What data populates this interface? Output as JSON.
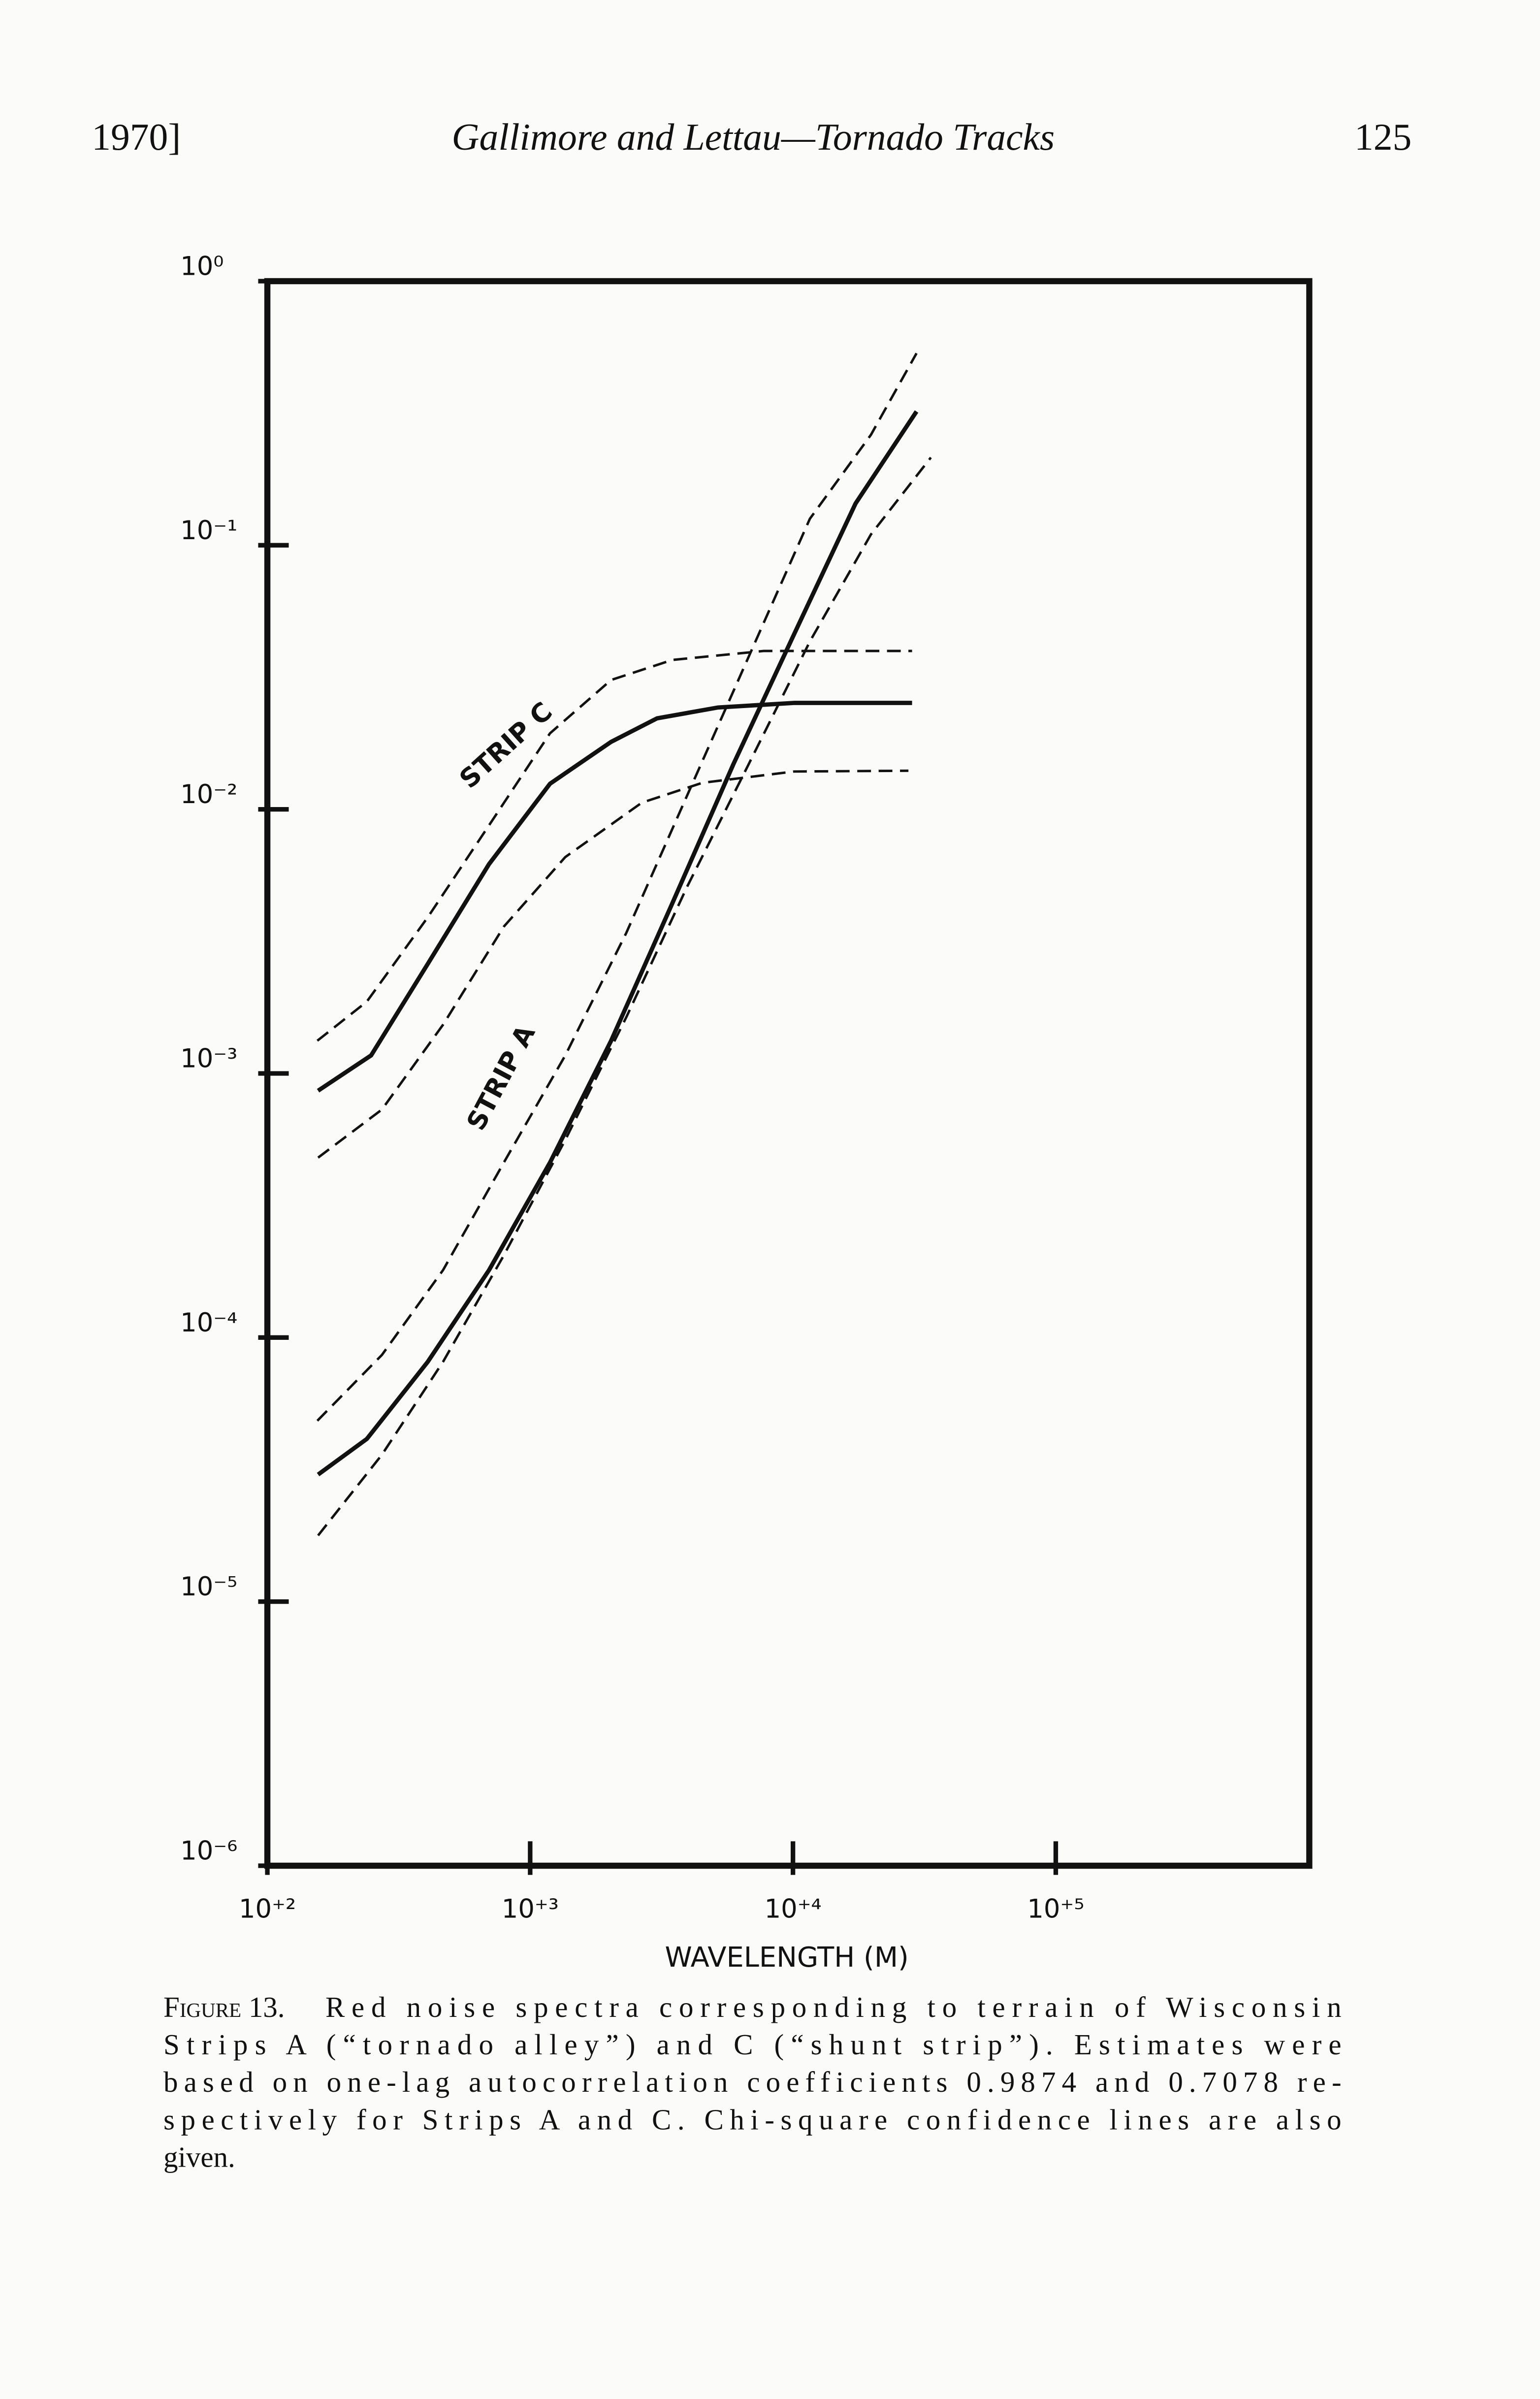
{
  "header": {
    "left": "1970]",
    "center": "Gallimore and Lettau—Tornado Tracks",
    "right": "125"
  },
  "chart_data": {
    "type": "line",
    "xscale": "log",
    "yscale": "log",
    "xlabel": "WAVELENGTH (M)",
    "xlim": [
      100,
      922000
    ],
    "ylim": [
      1e-06,
      1
    ],
    "xticks": [
      {
        "value": 100,
        "label": "10⁺²"
      },
      {
        "value": 1000,
        "label": "10⁺³"
      },
      {
        "value": 10000,
        "label": "10⁺⁴"
      },
      {
        "value": 100000,
        "label": "10⁺⁵"
      }
    ],
    "yticks": [
      {
        "value": 1,
        "label": "10⁰"
      },
      {
        "value": 0.1,
        "label": "10⁻¹"
      },
      {
        "value": 0.01,
        "label": "10⁻²"
      },
      {
        "value": 0.001,
        "label": "10⁻³"
      },
      {
        "value": 0.0001,
        "label": "10⁻⁴"
      },
      {
        "value": 1e-05,
        "label": "10⁻⁵"
      },
      {
        "value": 1e-06,
        "label": "10⁻⁶"
      }
    ],
    "series": [
      {
        "name": "STRIP C",
        "color": "#111111",
        "style": "solid",
        "x": [
          156,
          248,
          408,
          697,
          1190,
          2032,
          3039,
          5188,
          10140,
          28400
        ],
        "values": [
          0.00086,
          0.00117,
          0.0026,
          0.0062,
          0.0125,
          0.018,
          0.0221,
          0.0243,
          0.0253,
          0.0253
        ]
      },
      {
        "color": "#111111",
        "style": "dashed",
        "x": [
          155,
          239,
          408,
          697,
          1190,
          2032,
          3470,
          7750,
          28400
        ],
        "values": [
          0.00133,
          0.00187,
          0.0039,
          0.0087,
          0.0194,
          0.0309,
          0.0368,
          0.0398,
          0.0398
        ]
      },
      {
        "color": "#111111",
        "style": "dashed",
        "x": [
          156,
          273,
          466,
          794,
          1360,
          2660,
          4520,
          10100,
          27500
        ],
        "values": [
          0.00048,
          0.00073,
          0.00153,
          0.0036,
          0.0066,
          0.0106,
          0.0126,
          0.0139,
          0.014
        ]
      },
      {
        "name": "STRIP A",
        "color": "#111111",
        "style": "solid",
        "x": [
          156,
          239,
          408,
          697,
          1190,
          2032,
          3470,
          5930,
          10100,
          17300,
          29500
        ],
        "values": [
          3.03e-05,
          4.13e-05,
          8.1e-05,
          0.00018,
          0.00046,
          0.00133,
          0.0044,
          0.0148,
          0.0461,
          0.144,
          0.321
        ]
      },
      {
        "color": "#111111",
        "style": "dashed",
        "x": [
          155,
          273,
          466,
          794,
          1360,
          2320,
          3960,
          6780,
          11600,
          19800,
          29500
        ],
        "values": [
          4.84e-05,
          8.6e-05,
          0.00018,
          0.00046,
          0.00117,
          0.0034,
          0.0113,
          0.0378,
          0.126,
          0.262,
          0.533
        ]
      },
      {
        "color": "#111111",
        "style": "dashed",
        "x": [
          156,
          273,
          466,
          794,
          1360,
          2320,
          3960,
          6780,
          11600,
          19800,
          33500
        ],
        "values": [
          1.78e-05,
          3.6e-05,
          8.1e-05,
          0.000205,
          0.00056,
          0.00163,
          0.0051,
          0.0148,
          0.0432,
          0.11,
          0.215
        ]
      }
    ]
  },
  "caption": {
    "label": "Figure 13.",
    "lines": [
      "Red noise spectra corresponding to terrain of Wisconsin",
      "Strips A (“tornado alley”) and C (“shunt strip”). Estimates were",
      "based on one-lag autocorrelation coefficients 0.9874 and 0.7078 re-",
      "spectively for Strips A and C. Chi-square confidence lines are also",
      "given."
    ]
  }
}
